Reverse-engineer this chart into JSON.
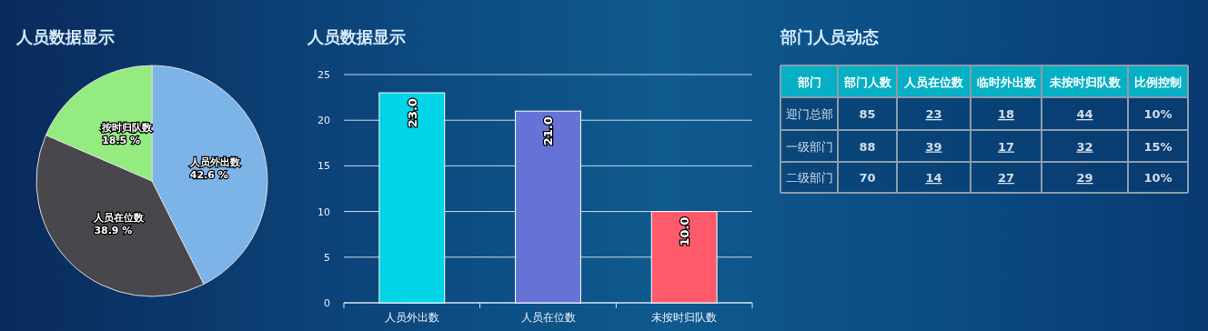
{
  "chart_data": [
    {
      "type": "pie",
      "title": "人员数据显示",
      "categories": [
        "人员外出数",
        "人员在位数",
        "按时归队数"
      ],
      "values": [
        42.6,
        38.9,
        18.5
      ],
      "colors": [
        "#7db4e8",
        "#48474c",
        "#94eb80"
      ],
      "value_labels": [
        "42.6 %",
        "38.9 %",
        "18.5 %"
      ]
    },
    {
      "type": "bar",
      "title": "人员数据显示",
      "categories": [
        "人员外出数",
        "人员在位数",
        "未按时归队数"
      ],
      "values": [
        23,
        21,
        10
      ],
      "colors": [
        "#00d4e6",
        "#6673d6",
        "#ff5a6b"
      ],
      "value_labels": [
        "23.0",
        "21.0",
        "10.0"
      ],
      "ylim": [
        0,
        25
      ],
      "yticks": [
        0,
        5,
        10,
        15,
        20,
        25
      ],
      "grid": "y"
    },
    {
      "type": "other",
      "title": "部门人员动态",
      "ylabel": "部门",
      "categories": [
        "部门人数",
        "人员在位数",
        "临时外出数",
        "未按时归队数",
        "比例控制"
      ],
      "y_categories": [
        "迎门总部",
        "一级部门",
        "二级部门"
      ],
      "cell_labels": [
        [
          "85",
          "23",
          "18",
          "44",
          "10%"
        ],
        [
          "88",
          "39",
          "17",
          "32",
          "15%"
        ],
        [
          "70",
          "14",
          "27",
          "29",
          "10%"
        ]
      ]
    }
  ]
}
